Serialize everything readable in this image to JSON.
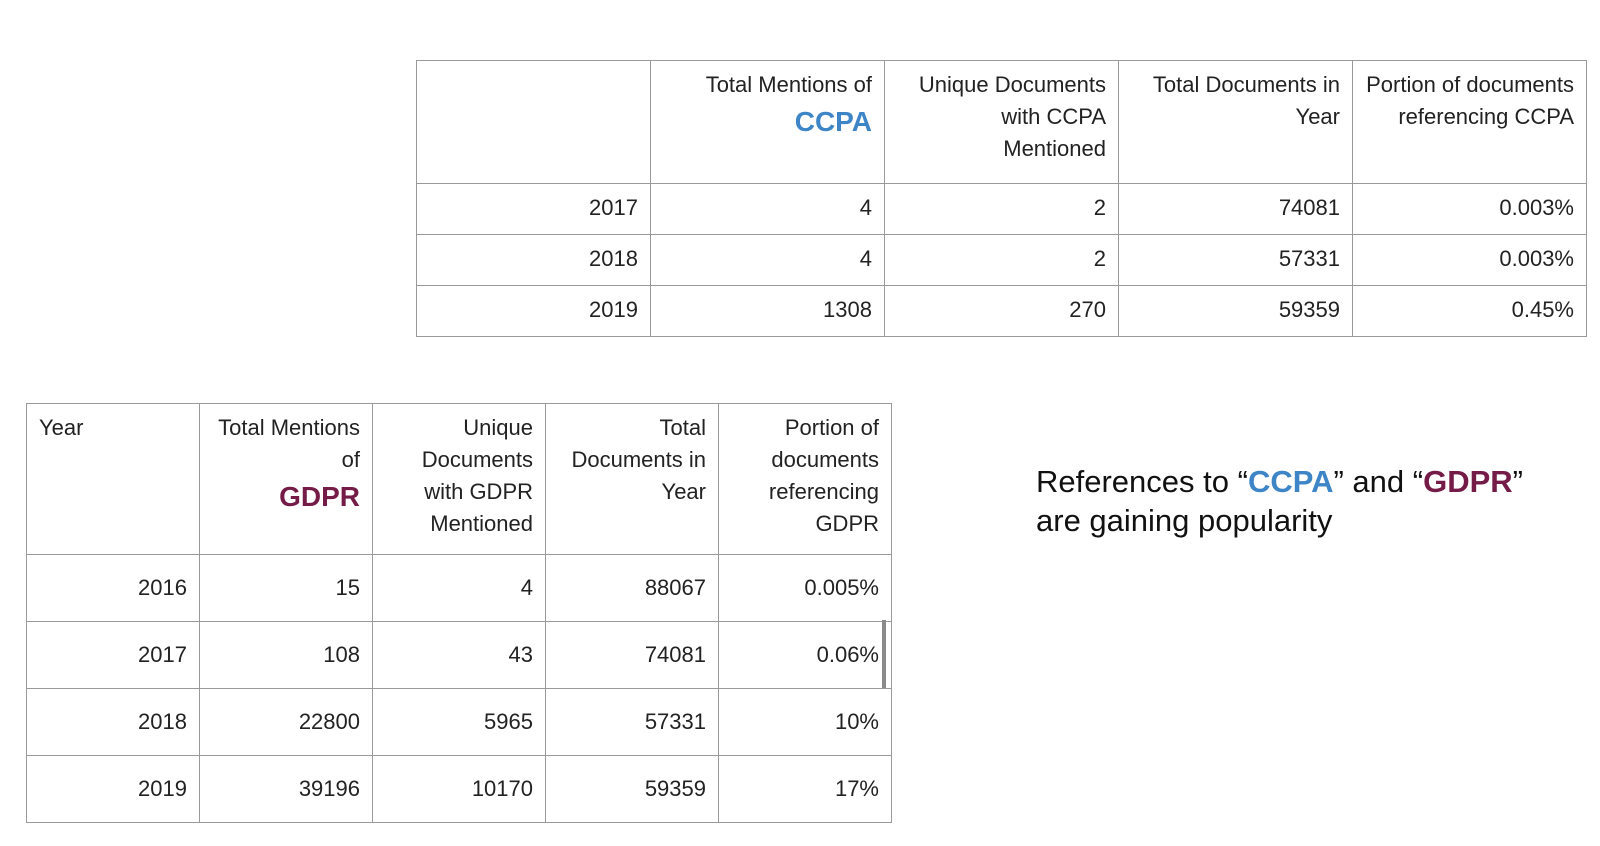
{
  "colors": {
    "ccpa": "#3d85c6",
    "gdpr": "#741b47",
    "grid": "#9a9a9a"
  },
  "ccpa_table": {
    "headers": [
      {
        "text": "",
        "strong": ""
      },
      {
        "text": "Total Mentions of",
        "strong": "CCPA"
      },
      {
        "text": "Unique Documents with CCPA Mentioned",
        "strong": ""
      },
      {
        "text": "Total Documents in Year",
        "strong": ""
      },
      {
        "text": "Portion of documents referencing CCPA",
        "strong": ""
      }
    ],
    "rows": [
      [
        "2017",
        "4",
        "2",
        "74081",
        "0.003%"
      ],
      [
        "2018",
        "4",
        "2",
        "57331",
        "0.003%"
      ],
      [
        "2019",
        "1308",
        "270",
        "59359",
        "0.45%"
      ]
    ]
  },
  "gdpr_table": {
    "headers": [
      {
        "text": "Year",
        "strong": ""
      },
      {
        "text": "Total Mentions of",
        "strong": "GDPR"
      },
      {
        "text": "Unique Documents with GDPR Mentioned",
        "strong": ""
      },
      {
        "text": "Total Documents in Year",
        "strong": ""
      },
      {
        "text": "Portion of documents referencing GDPR",
        "strong": ""
      }
    ],
    "rows": [
      [
        "2016",
        "15",
        "4",
        "88067",
        "0.005%"
      ],
      [
        "2017",
        "108",
        "43",
        "74081",
        "0.06%"
      ],
      [
        "2018",
        "22800",
        "5965",
        "57331",
        "10%"
      ],
      [
        "2019",
        "39196",
        "10170",
        "59359",
        "17%"
      ]
    ]
  },
  "caption": {
    "part1": "References to “",
    "ccpa": "CCPA",
    "part2": "” and “",
    "gdpr": "GDPR",
    "part3": "” are gaining popularity"
  }
}
